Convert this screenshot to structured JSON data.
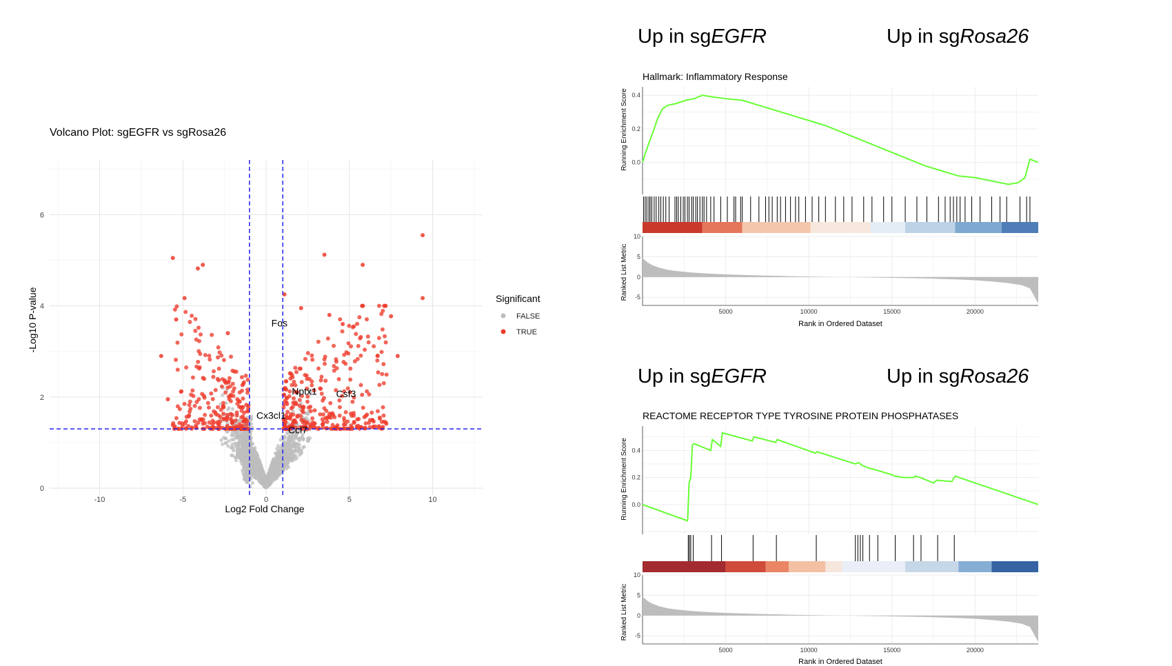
{
  "headers": {
    "gsea1_left_prefix": "Up in sg",
    "gsea1_left_italic": "EGFR",
    "gsea1_right_prefix": "Up in sg",
    "gsea1_right_italic": "Rosa26",
    "gsea2_left_prefix": "Up in sg",
    "gsea2_left_italic": "EGFR",
    "gsea2_right_prefix": "Up in sg",
    "gsea2_right_italic": "Rosa26"
  },
  "colors": {
    "significant": "#ee3b2b",
    "nonsignificant": "#bdbdbd",
    "threshold": "#2222ee",
    "es_curve": "#66ff33",
    "metric_fill": "#bdbdbd"
  },
  "chart_data": [
    {
      "type": "scatter",
      "title": "Volcano Plot: sgEGFR vs sgRosa26",
      "xlabel": "Log2 Fold Change",
      "ylabel": "-Log10 P-value",
      "xlim": [
        -13,
        13
      ],
      "ylim": [
        -0.15,
        7.2
      ],
      "xticks": [
        -10,
        -5,
        0,
        5,
        10
      ],
      "yticks": [
        0,
        2,
        4,
        6
      ],
      "grid": true,
      "legend": {
        "title": "Significant",
        "entries": [
          "FALSE",
          "TRUE"
        ],
        "placement": "right"
      },
      "thresholds": {
        "x": [
          -1,
          1
        ],
        "y": 1.3
      },
      "highlighted_points": [
        {
          "x": 9.4,
          "y": 5.55
        },
        {
          "x": -5.6,
          "y": 5.05
        },
        {
          "x": -3.8,
          "y": 4.9
        },
        {
          "x": -4.1,
          "y": 4.82
        },
        {
          "x": 3.5,
          "y": 5.12
        },
        {
          "x": 5.8,
          "y": 4.9
        },
        {
          "x": 9.4,
          "y": 4.17
        },
        {
          "x": -4.9,
          "y": 4.17
        },
        {
          "x": -6.3,
          "y": 2.9
        },
        {
          "x": -5.9,
          "y": 1.95
        },
        {
          "x": 7.9,
          "y": 2.9
        },
        {
          "x": 7.5,
          "y": 3.77
        },
        {
          "x": 3.8,
          "y": 3.8
        },
        {
          "x": 1.1,
          "y": 4.25
        },
        {
          "x": 2.1,
          "y": 3.95
        },
        {
          "x": -2.3,
          "y": 3.4
        },
        {
          "x": -5.4,
          "y": 3.7
        },
        {
          "x": 4.6,
          "y": 3.6
        }
      ],
      "labels": [
        {
          "text": "Fos",
          "x": 0.8,
          "y": 3.55
        },
        {
          "text": "Nptx1",
          "x": 2.3,
          "y": 2.05
        },
        {
          "text": "Csf3",
          "x": 4.8,
          "y": 2.0
        },
        {
          "text": "Cx3cl1",
          "x": 0.3,
          "y": 1.52
        },
        {
          "text": "Ccl7",
          "x": 1.9,
          "y": 1.2
        }
      ]
    },
    {
      "type": "line",
      "title": "Hallmark: Inflammatory Response",
      "xlabel": "Rank in Ordered Dataset",
      "ylabel_top": "Running Enrichment Score",
      "ylabel_bottom": "Ranked List Metric",
      "xlim": [
        0,
        23800
      ],
      "xticks": [
        5000,
        10000,
        15000,
        20000
      ],
      "es_ylim": [
        -0.19,
        0.45
      ],
      "es_yticks": [
        0.0,
        0.2,
        0.4
      ],
      "metric_ylim": [
        -7,
        10
      ],
      "metric_yticks": [
        -5,
        0,
        5,
        10
      ],
      "es_curve": {
        "x": [
          0,
          150,
          400,
          700,
          900,
          1200,
          1500,
          2000,
          2600,
          3100,
          3600,
          4200,
          5000,
          6000,
          7000,
          8000,
          9000,
          10000,
          11000,
          12000,
          13000,
          14000,
          15000,
          16000,
          17000,
          18000,
          19000,
          20000,
          21000,
          22000,
          22600,
          23000,
          23300,
          23800
        ],
        "y": [
          0.0,
          0.05,
          0.12,
          0.2,
          0.26,
          0.32,
          0.34,
          0.35,
          0.37,
          0.38,
          0.4,
          0.39,
          0.38,
          0.37,
          0.34,
          0.31,
          0.28,
          0.25,
          0.22,
          0.18,
          0.14,
          0.1,
          0.06,
          0.02,
          -0.02,
          -0.05,
          -0.08,
          -0.09,
          -0.11,
          -0.13,
          -0.12,
          -0.09,
          0.02,
          0.0
        ]
      },
      "hits": [
        60,
        160,
        260,
        380,
        460,
        560,
        700,
        820,
        980,
        1100,
        1250,
        1400,
        1600,
        1950,
        2050,
        2150,
        2300,
        2450,
        2550,
        2700,
        2800,
        2950,
        3050,
        3200,
        3300,
        3450,
        3600,
        3700,
        3850,
        4100,
        4300,
        4700,
        5100,
        5500,
        5600,
        5900,
        6000,
        6500,
        7000,
        7400,
        7600,
        7800,
        8100,
        8300,
        8600,
        8900,
        9200,
        9400,
        9800,
        10200,
        10600,
        11000,
        11600,
        12100,
        12600,
        13300,
        13800,
        14500,
        15000,
        15800,
        16500,
        17100,
        17800,
        18200,
        18500,
        18700,
        18900,
        19100,
        19400,
        19800,
        20300,
        21000,
        21500,
        21900,
        22700,
        23100,
        23300
      ],
      "heat_bands": [
        {
          "from": 0,
          "to": 3600,
          "color": "#c9392b"
        },
        {
          "from": 3600,
          "to": 6000,
          "color": "#e5765a"
        },
        {
          "from": 6000,
          "to": 10100,
          "color": "#f4c7ad"
        },
        {
          "from": 10100,
          "to": 13700,
          "color": "#f7e7dd"
        },
        {
          "from": 13700,
          "to": 15800,
          "color": "#e4ecf5"
        },
        {
          "from": 15800,
          "to": 18800,
          "color": "#bcd2e6"
        },
        {
          "from": 18800,
          "to": 21600,
          "color": "#7ea8d0"
        },
        {
          "from": 21600,
          "to": 23800,
          "color": "#4f7db8"
        }
      ],
      "metric_curve": {
        "x": [
          0,
          100,
          300,
          600,
          1000,
          1500,
          2000,
          3000,
          4000,
          5000,
          7000,
          9000,
          11000,
          13000,
          15000,
          17000,
          19000,
          20000,
          21000,
          22000,
          22800,
          23300,
          23800
        ],
        "y": [
          4.8,
          4.3,
          3.6,
          2.9,
          2.3,
          1.8,
          1.5,
          1.1,
          0.85,
          0.65,
          0.4,
          0.2,
          0.05,
          -0.05,
          -0.2,
          -0.35,
          -0.6,
          -0.8,
          -1.1,
          -1.5,
          -2.0,
          -2.8,
          -6.5
        ]
      }
    },
    {
      "type": "line",
      "title": "REACTOME RECEPTOR TYPE TYROSINE PROTEIN PHOSPHATASES",
      "xlabel": "Rank in Ordered Dataset",
      "ylabel_top": "Running Enrichment Score",
      "ylabel_bottom": "Ranked List Metric",
      "xlim": [
        0,
        23800
      ],
      "xticks": [
        5000,
        10000,
        15000,
        20000
      ],
      "es_ylim": [
        -0.22,
        0.58
      ],
      "es_yticks": [
        0.0,
        0.2,
        0.4
      ],
      "metric_ylim": [
        -7,
        10
      ],
      "metric_yticks": [
        -5,
        0,
        5,
        10
      ],
      "es_curve": {
        "x": [
          0,
          2700,
          2720,
          2800,
          2900,
          3000,
          3100,
          4100,
          4200,
          4700,
          4800,
          6600,
          6700,
          8000,
          8100,
          10400,
          10500,
          12800,
          13000,
          13100,
          13200,
          13400,
          13600,
          14200,
          15000,
          15200,
          15700,
          16300,
          16400,
          16700,
          17500,
          17700,
          18600,
          18800,
          23800
        ],
        "y": [
          0.0,
          -0.12,
          -0.1,
          0.16,
          0.2,
          0.44,
          0.45,
          0.4,
          0.48,
          0.43,
          0.53,
          0.47,
          0.5,
          0.46,
          0.48,
          0.38,
          0.39,
          0.3,
          0.31,
          0.3,
          0.29,
          0.28,
          0.27,
          0.25,
          0.22,
          0.21,
          0.2,
          0.2,
          0.21,
          0.2,
          0.16,
          0.18,
          0.17,
          0.21,
          0.0
        ]
      },
      "hits": [
        2750,
        2820,
        2900,
        3050,
        4150,
        4750,
        6650,
        8050,
        10450,
        12800,
        12950,
        13100,
        13250,
        13650,
        14150,
        15200,
        16300,
        16750,
        17750,
        18750
      ],
      "heat_bands": [
        {
          "from": 0,
          "to": 5000,
          "color": "#a32a2e"
        },
        {
          "from": 5000,
          "to": 7400,
          "color": "#cf4c3a"
        },
        {
          "from": 7400,
          "to": 8800,
          "color": "#ea8565"
        },
        {
          "from": 8800,
          "to": 11000,
          "color": "#f3c0a4"
        },
        {
          "from": 11000,
          "to": 12000,
          "color": "#f6e6dc"
        },
        {
          "from": 12000,
          "to": 15800,
          "color": "#e9eef7"
        },
        {
          "from": 15800,
          "to": 19000,
          "color": "#c6d7e7"
        },
        {
          "from": 19000,
          "to": 21000,
          "color": "#86aed5"
        },
        {
          "from": 21000,
          "to": 23800,
          "color": "#3563a4"
        }
      ],
      "metric_curve": {
        "x": [
          0,
          100,
          300,
          600,
          1000,
          1500,
          2000,
          3000,
          4000,
          5000,
          7000,
          9000,
          11000,
          13000,
          15000,
          17000,
          19000,
          20000,
          21000,
          22000,
          22800,
          23300,
          23800
        ],
        "y": [
          4.8,
          4.3,
          3.6,
          2.9,
          2.3,
          1.8,
          1.5,
          1.1,
          0.85,
          0.65,
          0.4,
          0.2,
          0.05,
          -0.05,
          -0.2,
          -0.35,
          -0.6,
          -0.8,
          -1.1,
          -1.5,
          -2.0,
          -2.8,
          -6.5
        ]
      }
    }
  ]
}
